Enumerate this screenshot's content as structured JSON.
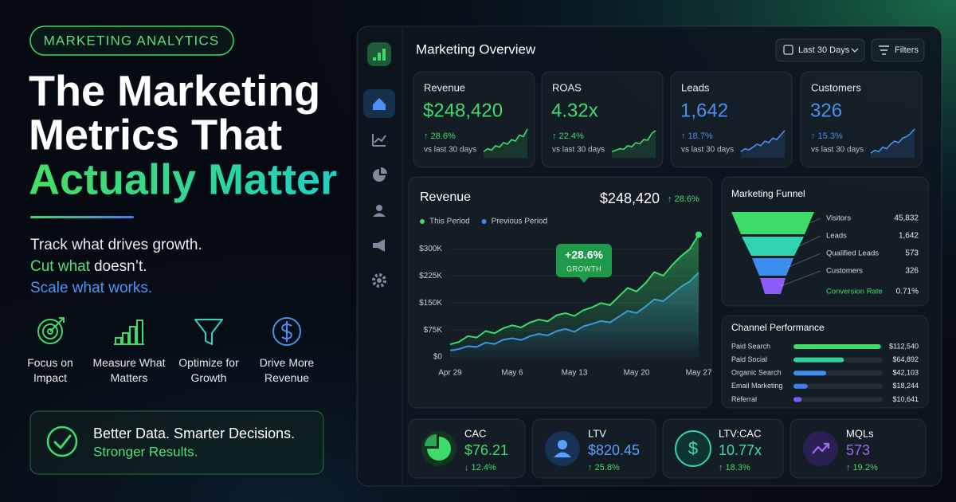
{
  "hero": {
    "badge": "MARKETING ANALYTICS",
    "title_1": "The Marketing",
    "title_2": "Metrics That",
    "title_3": "Actually Matter",
    "tagline_1": "Track what drives growth.",
    "tagline_2": "Cut what",
    "tagline_2_end": "doesn’t.",
    "tagline_3": "Scale what works.",
    "features": [
      "Focus on Impact",
      "Measure What Matters",
      "Optimize for Growth",
      "Drive More Revenue"
    ],
    "callout_1": "Better Data. Smarter Decisions.",
    "callout_2": "Stronger Results."
  },
  "dashboard": {
    "title": "Marketing Overview",
    "date_range": "Last 30 Days",
    "filters": "Filters",
    "spark_lim": [
      0,
      10
    ],
    "kpis": [
      {
        "label": "Revenue",
        "value": "$248,420",
        "change": "↑ 28.6%",
        "period": "vs last 30 days",
        "color": "#3ddc6a",
        "spark": [
          2,
          3,
          2.5,
          4,
          3.5,
          5,
          4.5,
          6,
          5.5,
          7.5,
          7,
          9.5
        ]
      },
      {
        "label": "ROAS",
        "value": "4.32x",
        "change": "↑ 22.4%",
        "period": "vs last 30 days",
        "color": "#3ddc6a",
        "spark": [
          2,
          2.5,
          3,
          2.8,
          4,
          3.6,
          5,
          4.6,
          6,
          5.8,
          8,
          9
        ]
      },
      {
        "label": "Leads",
        "value": "1,642",
        "change": "↑ 18.7%",
        "period": "vs last 30 days",
        "color": "#4a90f0",
        "spark": [
          2,
          3,
          2.6,
          3.5,
          4.5,
          4,
          5.5,
          5,
          6.5,
          6,
          7.5,
          9
        ]
      },
      {
        "label": "Customers",
        "value": "326",
        "change": "↑ 15.3%",
        "period": "vs last 30 days",
        "color": "#4a90f0",
        "spark": [
          1.5,
          2.5,
          2,
          3.5,
          3,
          4.5,
          5.5,
          5,
          6.5,
          7,
          8,
          9.5
        ]
      }
    ],
    "funnel": {
      "title": "Marketing Funnel",
      "stages": [
        {
          "label": "Visitors",
          "value": "45,832",
          "color": "#3ddc6a"
        },
        {
          "label": "Leads",
          "value": "1,642",
          "color": "#2fd3b0"
        },
        {
          "label": "Qualified Leads",
          "value": "573",
          "color": "#3b8ef0"
        },
        {
          "label": "Customers",
          "value": "326",
          "color": "#8b5cf6"
        }
      ],
      "conversion_label": "Conversion Rate",
      "conversion_value": "0.71%"
    },
    "bottom": [
      {
        "label": "CAC",
        "value": "$76.21",
        "change": "↓ 12.4%",
        "color": "#3ddc6a"
      },
      {
        "label": "LTV",
        "value": "$820.45",
        "change": "↑ 25.8%",
        "color": "#5aa0ff"
      },
      {
        "label": "LTV:CAC",
        "value": "10.77x",
        "change": "↑ 18.3%",
        "color": "#3ddcb0"
      },
      {
        "label": "MQLs",
        "value": "573",
        "change": "↑ 19.2%",
        "color": "#9b6cf6"
      }
    ]
  },
  "chart_data": [
    {
      "type": "line",
      "title": "Revenue",
      "headline": "$248,420",
      "change": "↑ 28.6%",
      "annotation": "+28.6%",
      "annotation_sub": "GROWTH",
      "x": [
        "Apr 29",
        "Apr 30",
        "May 1",
        "May 2",
        "May 3",
        "May 4",
        "May 5",
        "May 6",
        "May 7",
        "May 8",
        "May 9",
        "May 10",
        "May 11",
        "May 12",
        "May 13",
        "May 14",
        "May 15",
        "May 16",
        "May 17",
        "May 18",
        "May 19",
        "May 20",
        "May 21",
        "May 22",
        "May 23",
        "May 24",
        "May 25",
        "May 26",
        "May 27"
      ],
      "series": [
        {
          "name": "This Period",
          "color": "#3ddc6a",
          "values": [
            35000,
            42000,
            58000,
            54000,
            72000,
            66000,
            80000,
            88000,
            82000,
            96000,
            104000,
            99000,
            116000,
            122000,
            114000,
            130000,
            138000,
            150000,
            144000,
            168000,
            192000,
            182000,
            205000,
            236000,
            226000,
            255000,
            280000,
            300000,
            340000
          ]
        },
        {
          "name": "Previous Period",
          "color": "#3b8ef0",
          "values": [
            18000,
            22000,
            30000,
            28000,
            40000,
            36000,
            48000,
            52000,
            47000,
            58000,
            64000,
            60000,
            72000,
            78000,
            70000,
            85000,
            92000,
            100000,
            96000,
            112000,
            128000,
            122000,
            140000,
            160000,
            155000,
            175000,
            195000,
            210000,
            235000
          ]
        }
      ],
      "ylim": [
        0,
        350000
      ],
      "yticks": [
        {
          "value": 0,
          "label": "$0"
        },
        {
          "value": 75000,
          "label": "$75K"
        },
        {
          "value": 150000,
          "label": "$150K"
        },
        {
          "value": 225000,
          "label": "$225K"
        },
        {
          "value": 300000,
          "label": "$300K"
        }
      ],
      "xticks": [
        "Apr 29",
        "May 6",
        "May 13",
        "May 20",
        "May 27"
      ]
    },
    {
      "type": "barh",
      "title": "Channel Performance",
      "categories": [
        "Paid Search",
        "Paid Social",
        "Organic Search",
        "Email Marketing",
        "Referral"
      ],
      "values": [
        112540,
        64892,
        42103,
        18244,
        10641
      ],
      "value_labels": [
        "$112,540",
        "$64,892",
        "$42,103",
        "$18,244",
        "$10,641"
      ],
      "colors": [
        "#3ddc6a",
        "#2fd3a0",
        "#3b8ef0",
        "#3b7ff0",
        "#7c5cf6"
      ],
      "xlim": [
        0,
        115000
      ]
    }
  ]
}
